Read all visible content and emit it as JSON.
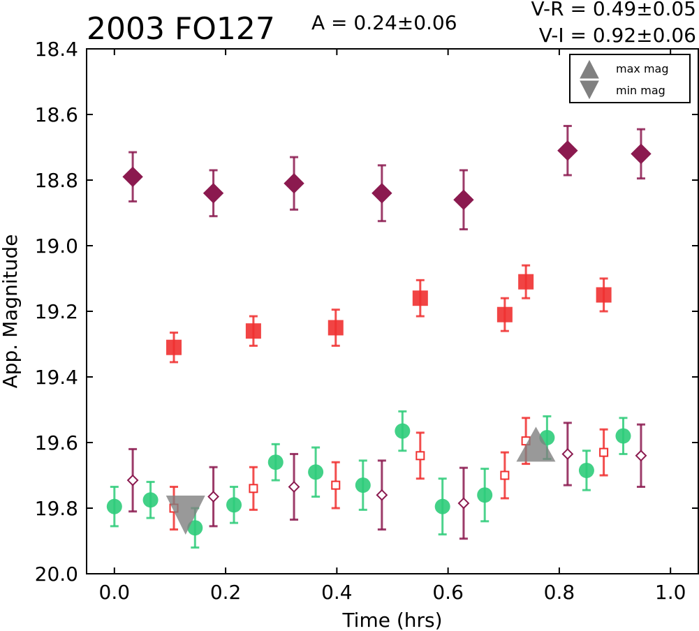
{
  "chart_data": {
    "type": "scatter",
    "title": "2003 FO127",
    "annotations": {
      "amplitude": "A  = 0.24±0.06",
      "v_r": "V-R = 0.49±0.05",
      "v_i": "V-I  = 0.92±0.06"
    },
    "xlabel": "Time (hrs)",
    "ylabel": "App. Magnitude",
    "xlim": [
      -0.05,
      1.05
    ],
    "ylim": [
      20.0,
      18.4
    ],
    "y_inverted": true,
    "x_ticks": [
      "0.0",
      "0.2",
      "0.4",
      "0.6",
      "0.8",
      "1.0"
    ],
    "y_ticks": [
      "18.4",
      "18.6",
      "18.8",
      "19.0",
      "19.2",
      "19.4",
      "19.6",
      "19.8",
      "20.0"
    ],
    "grid": false,
    "legend": {
      "placement": "top-right",
      "entries": [
        {
          "label": "max mag",
          "marker": "triangle-up",
          "color": "#808080"
        },
        {
          "label": "min mag",
          "marker": "triangle-down",
          "color": "#808080"
        }
      ]
    },
    "series": [
      {
        "marker": "diamond-filled",
        "color": "#8b1a4f",
        "x": [
          0.033,
          0.178,
          0.323,
          0.481,
          0.628,
          0.815,
          0.947
        ],
        "y": [
          18.79,
          18.84,
          18.81,
          18.84,
          18.86,
          18.71,
          18.72
        ],
        "err": [
          0.075,
          0.07,
          0.08,
          0.085,
          0.09,
          0.075,
          0.075
        ]
      },
      {
        "marker": "square-filled",
        "color": "#f03030",
        "x": [
          0.107,
          0.25,
          0.398,
          0.55,
          0.702,
          0.74,
          0.88
        ],
        "y": [
          19.31,
          19.26,
          19.25,
          19.16,
          19.21,
          19.11,
          19.15
        ],
        "err": [
          0.045,
          0.045,
          0.055,
          0.055,
          0.05,
          0.05,
          0.05
        ]
      },
      {
        "marker": "circle-filled",
        "color": "#2ecc7a",
        "x": [
          0.0,
          0.065,
          0.145,
          0.215,
          0.29,
          0.362,
          0.447,
          0.518,
          0.59,
          0.666,
          0.778,
          0.849,
          0.915
        ],
        "y": [
          19.795,
          19.775,
          19.86,
          19.79,
          19.66,
          19.69,
          19.73,
          19.565,
          19.795,
          19.76,
          19.585,
          19.685,
          19.58
        ],
        "err": [
          0.06,
          0.055,
          0.06,
          0.055,
          0.055,
          0.075,
          0.075,
          0.06,
          0.085,
          0.08,
          0.065,
          0.06,
          0.055
        ]
      },
      {
        "marker": "square-open",
        "color": "#f03030",
        "x": [
          0.107,
          0.25,
          0.398,
          0.55,
          0.702,
          0.74,
          0.88
        ],
        "y": [
          19.8,
          19.74,
          19.73,
          19.64,
          19.7,
          19.595,
          19.63
        ],
        "err": [
          0.065,
          0.065,
          0.07,
          0.07,
          0.07,
          0.07,
          0.07
        ]
      },
      {
        "marker": "diamond-open",
        "color": "#8b1a4f",
        "x": [
          0.033,
          0.178,
          0.323,
          0.481,
          0.628,
          0.815,
          0.947
        ],
        "y": [
          19.715,
          19.765,
          19.735,
          19.76,
          19.785,
          19.635,
          19.64
        ],
        "err": [
          0.095,
          0.09,
          0.1,
          0.105,
          0.108,
          0.095,
          0.095
        ]
      }
    ],
    "extrema": [
      {
        "type": "max",
        "marker": "triangle-up",
        "x": 0.758,
        "y": 19.605,
        "color": "#808080"
      },
      {
        "type": "min",
        "marker": "triangle-down",
        "x": 0.128,
        "y": 19.815,
        "color": "#808080"
      }
    ]
  }
}
